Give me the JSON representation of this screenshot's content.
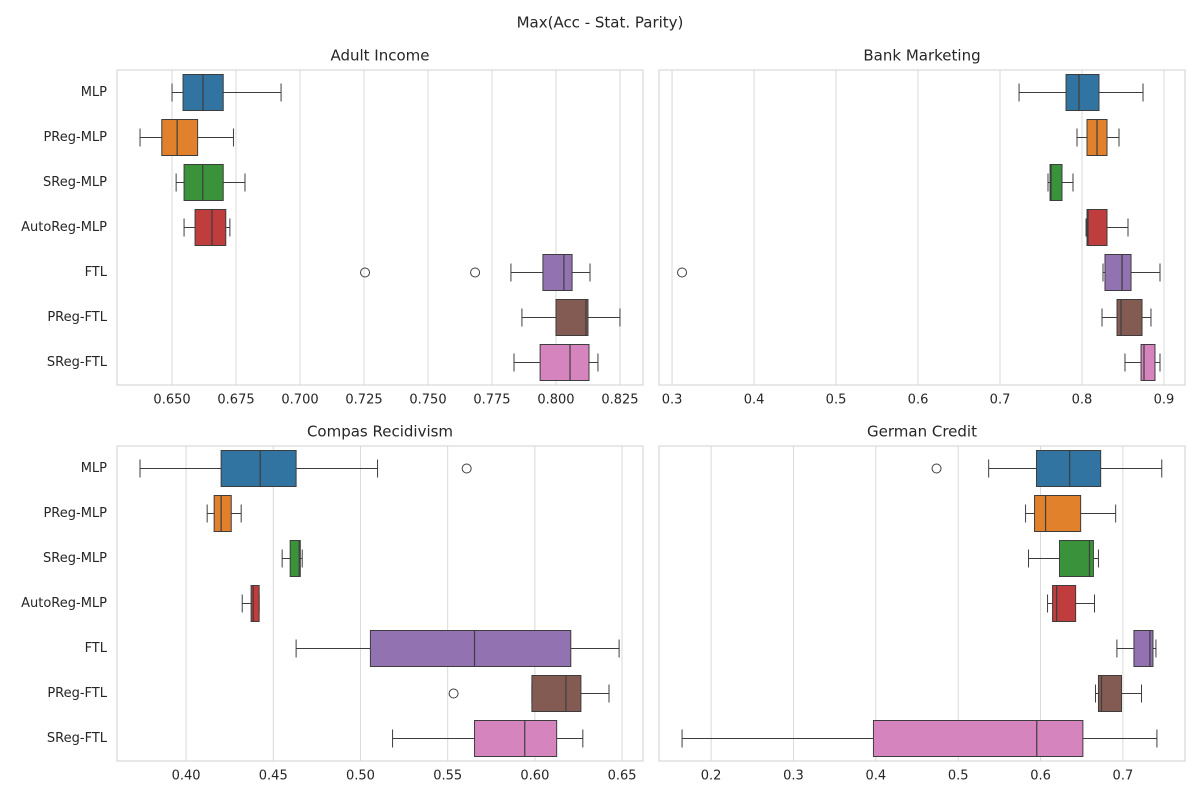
{
  "title": "Max(Acc - Stat. Parity)",
  "chart_data": [
    {
      "type": "box",
      "title": "Adult Income",
      "categories": [
        "MLP",
        "PReg-MLP",
        "SReg-MLP",
        "AutoReg-MLP",
        "FTL",
        "PReg-FTL",
        "SReg-FTL"
      ],
      "colors": [
        "#3274a1",
        "#e1812c",
        "#3a923a",
        "#c03d3e",
        "#9372b2",
        "#845b53",
        "#d684bd"
      ],
      "xlim": [
        0.6285,
        0.834
      ],
      "xticks": [
        {
          "value": 0.65,
          "label": "0.650"
        },
        {
          "value": 0.675,
          "label": "0.675"
        },
        {
          "value": 0.7,
          "label": "0.700"
        },
        {
          "value": 0.725,
          "label": "0.725"
        },
        {
          "value": 0.75,
          "label": "0.750"
        },
        {
          "value": 0.775,
          "label": "0.775"
        },
        {
          "value": 0.8,
          "label": "0.800"
        },
        {
          "value": 0.825,
          "label": "0.825"
        }
      ],
      "grid": true,
      "boxes": [
        {
          "whislo": 0.65,
          "q1": 0.6543,
          "med": 0.6621,
          "q3": 0.67,
          "whishi": 0.6926,
          "fliers": []
        },
        {
          "whislo": 0.6375,
          "q1": 0.646,
          "med": 0.652,
          "q3": 0.66,
          "whishi": 0.674,
          "fliers": []
        },
        {
          "whislo": 0.6516,
          "q1": 0.6547,
          "med": 0.662,
          "q3": 0.67,
          "whishi": 0.6785,
          "fliers": []
        },
        {
          "whislo": 0.6547,
          "q1": 0.659,
          "med": 0.6656,
          "q3": 0.671,
          "whishi": 0.6726,
          "fliers": []
        },
        {
          "whislo": 0.7824,
          "q1": 0.7949,
          "med": 0.8031,
          "q3": 0.8063,
          "whishi": 0.8133,
          "fliers": [
            0.7254,
            0.7684
          ]
        },
        {
          "whislo": 0.7867,
          "q1": 0.8,
          "med": 0.8117,
          "q3": 0.8125,
          "whishi": 0.825,
          "fliers": []
        },
        {
          "whislo": 0.7836,
          "q1": 0.7938,
          "med": 0.8055,
          "q3": 0.8129,
          "whishi": 0.8164,
          "fliers": []
        }
      ]
    },
    {
      "type": "box",
      "title": "Bank Marketing",
      "colors": [
        "#3274a1",
        "#e1812c",
        "#3a923a",
        "#c03d3e",
        "#9372b2",
        "#845b53",
        "#d684bd"
      ],
      "xlim": [
        0.2841,
        0.9256
      ],
      "xticks": [
        0.3,
        0.4,
        0.5,
        0.6,
        0.7,
        0.8,
        0.9
      ],
      "grid": true,
      "boxes": [
        {
          "whislo": 0.7232,
          "q1": 0.7805,
          "med": 0.7963,
          "q3": 0.8207,
          "whishi": 0.8744,
          "fliers": []
        },
        {
          "whislo": 0.7939,
          "q1": 0.8061,
          "med": 0.8183,
          "q3": 0.8305,
          "whishi": 0.8451,
          "fliers": []
        },
        {
          "whislo": 0.7585,
          "q1": 0.761,
          "med": 0.7622,
          "q3": 0.7756,
          "whishi": 0.789,
          "fliers": []
        },
        {
          "whislo": 0.8049,
          "q1": 0.8061,
          "med": 0.8073,
          "q3": 0.8305,
          "whishi": 0.8561,
          "fliers": []
        },
        {
          "whislo": 0.8256,
          "q1": 0.828,
          "med": 0.8488,
          "q3": 0.8598,
          "whishi": 0.8951,
          "fliers": [
            0.3122
          ]
        },
        {
          "whislo": 0.8244,
          "q1": 0.8427,
          "med": 0.8476,
          "q3": 0.8732,
          "whishi": 0.8841,
          "fliers": []
        },
        {
          "whislo": 0.8524,
          "q1": 0.872,
          "med": 0.8756,
          "q3": 0.889,
          "whishi": 0.8951,
          "fliers": []
        }
      ]
    },
    {
      "type": "box",
      "title": "Compas Recidivism",
      "categories": [
        "MLP",
        "PReg-MLP",
        "SReg-MLP",
        "AutoReg-MLP",
        "FTL",
        "PReg-FTL",
        "SReg-FTL"
      ],
      "colors": [
        "#3274a1",
        "#e1812c",
        "#3a923a",
        "#c03d3e",
        "#9372b2",
        "#845b53",
        "#d684bd"
      ],
      "xlim": [
        0.3604,
        0.662
      ],
      "xticks": [
        {
          "value": 0.4,
          "label": "0.40"
        },
        {
          "value": 0.45,
          "label": "0.45"
        },
        {
          "value": 0.5,
          "label": "0.50"
        },
        {
          "value": 0.55,
          "label": "0.55"
        },
        {
          "value": 0.6,
          "label": "0.60"
        },
        {
          "value": 0.65,
          "label": "0.65"
        }
      ],
      "grid": true,
      "boxes": [
        {
          "whislo": 0.3736,
          "q1": 0.4201,
          "med": 0.4425,
          "q3": 0.4631,
          "whishi": 0.5098,
          "fliers": [
            0.5609
          ]
        },
        {
          "whislo": 0.4121,
          "q1": 0.4161,
          "med": 0.4201,
          "q3": 0.4259,
          "whishi": 0.4316,
          "fliers": []
        },
        {
          "whislo": 0.4551,
          "q1": 0.4597,
          "med": 0.4649,
          "q3": 0.4655,
          "whishi": 0.4666,
          "fliers": []
        },
        {
          "whislo": 0.4322,
          "q1": 0.4373,
          "med": 0.4385,
          "q3": 0.4419,
          "whishi": 0.4419,
          "fliers": []
        },
        {
          "whislo": 0.4631,
          "q1": 0.5057,
          "med": 0.5654,
          "q3": 0.6206,
          "whishi": 0.6483,
          "fliers": []
        },
        {
          "whislo": 0.5983,
          "q1": 0.5983,
          "med": 0.6178,
          "q3": 0.6264,
          "whishi": 0.6425,
          "fliers": [
            0.5534
          ]
        },
        {
          "whislo": 0.5184,
          "q1": 0.5654,
          "med": 0.5942,
          "q3": 0.6125,
          "whishi": 0.6275,
          "fliers": []
        }
      ]
    },
    {
      "type": "box",
      "title": "German Credit",
      "colors": [
        "#3274a1",
        "#e1812c",
        "#3a923a",
        "#c03d3e",
        "#9372b2",
        "#845b53",
        "#d684bd"
      ],
      "xlim": [
        0.1367,
        0.7754
      ],
      "xticks": [
        0.2,
        0.3,
        0.4,
        0.5,
        0.6,
        0.7
      ],
      "grid": true,
      "boxes": [
        {
          "whislo": 0.537,
          "q1": 0.5951,
          "med": 0.6353,
          "q3": 0.673,
          "whishi": 0.7472,
          "fliers": [
            0.4737
          ]
        },
        {
          "whislo": 0.5818,
          "q1": 0.5927,
          "med": 0.6061,
          "q3": 0.6487,
          "whishi": 0.6912,
          "fliers": []
        },
        {
          "whislo": 0.5854,
          "q1": 0.623,
          "med": 0.6594,
          "q3": 0.6642,
          "whishi": 0.6703,
          "fliers": []
        },
        {
          "whislo": 0.6085,
          "q1": 0.6146,
          "med": 0.6195,
          "q3": 0.6426,
          "whishi": 0.6655,
          "fliers": []
        },
        {
          "whislo": 0.6927,
          "q1": 0.7134,
          "med": 0.7328,
          "q3": 0.7365,
          "whishi": 0.7401,
          "fliers": []
        },
        {
          "whislo": 0.6667,
          "q1": 0.6703,
          "med": 0.674,
          "q3": 0.6983,
          "whishi": 0.7226,
          "fliers": []
        },
        {
          "whislo": 0.1647,
          "q1": 0.3971,
          "med": 0.5954,
          "q3": 0.6514,
          "whishi": 0.7413,
          "fliers": []
        }
      ]
    }
  ]
}
